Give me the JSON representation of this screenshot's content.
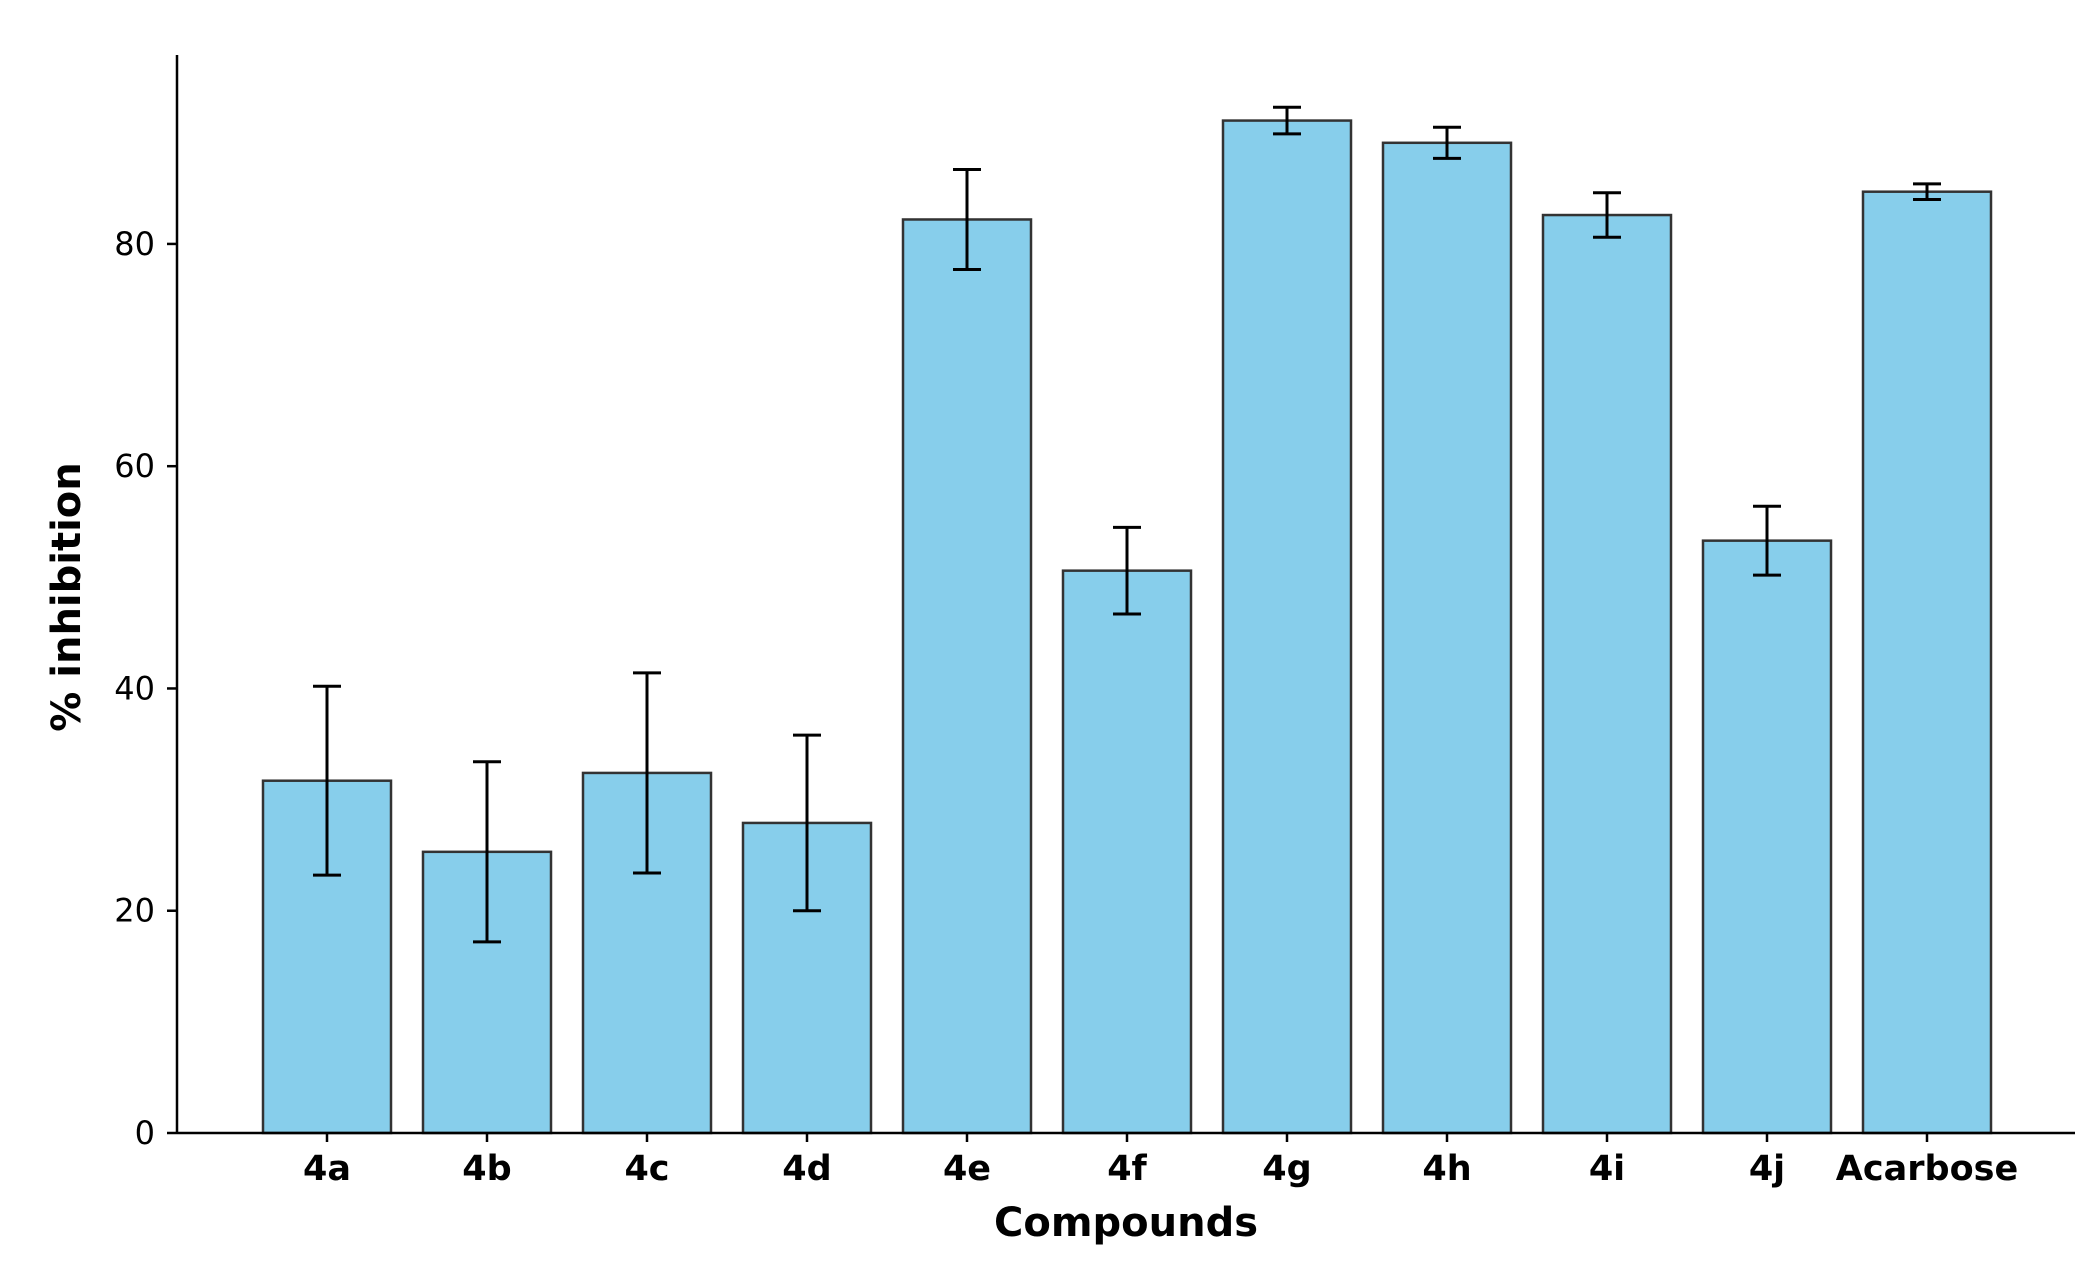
{
  "chart_data": {
    "type": "bar",
    "title": "",
    "xlabel": "Compounds",
    "ylabel": "% inhibition",
    "categories": [
      "4a",
      "4b",
      "4c",
      "4d",
      "4e",
      "4f",
      "4g",
      "4h",
      "4i",
      "4j",
      "Acarbose"
    ],
    "values": [
      31.7,
      25.3,
      32.4,
      27.9,
      82.2,
      50.6,
      91.1,
      89.1,
      82.6,
      53.3,
      84.7
    ],
    "errors": [
      8.5,
      8.1,
      9.0,
      7.9,
      4.5,
      3.9,
      1.2,
      1.4,
      2.0,
      3.1,
      0.7
    ],
    "ylim": [
      0,
      97
    ],
    "yticks": [
      0,
      20,
      40,
      60,
      80
    ],
    "bar_color": "#87ceeb",
    "bar_edge_color": "#333333",
    "error_bar_color": "#000000",
    "grid": false,
    "legend": "none"
  }
}
